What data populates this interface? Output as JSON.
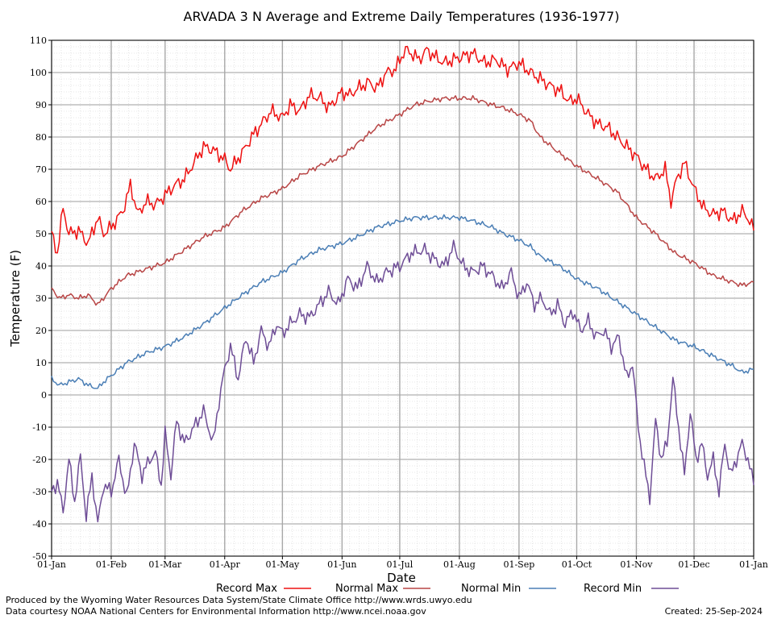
{
  "chart_data": {
    "type": "line",
    "title": "ARVADA 3 N Average and Extreme Daily Temperatures (1936-1977)",
    "xlabel": "Date",
    "ylabel": "Temperature (F)",
    "ylim": [
      -50,
      110
    ],
    "yticks": [
      -50,
      -40,
      -30,
      -20,
      -10,
      0,
      10,
      20,
      30,
      40,
      50,
      60,
      70,
      80,
      90,
      100,
      110
    ],
    "xticks": [
      "01-Jan",
      "01-Feb",
      "01-Mar",
      "01-Apr",
      "01-May",
      "01-Jun",
      "01-Jul",
      "01-Aug",
      "01-Sep",
      "01-Oct",
      "01-Nov",
      "01-Dec",
      "01-Jan"
    ],
    "xtick_days": [
      1,
      32,
      60,
      91,
      121,
      152,
      182,
      213,
      244,
      274,
      305,
      335,
      366
    ],
    "grid": true,
    "legend_position": "bottom",
    "series": [
      {
        "name": "Record Max",
        "color": "#ee1111",
        "x": [
          1,
          4,
          7,
          10,
          15,
          20,
          25,
          28,
          32,
          38,
          42,
          46,
          50,
          55,
          60,
          65,
          70,
          75,
          80,
          85,
          91,
          94,
          100,
          105,
          110,
          115,
          121,
          125,
          130,
          135,
          141,
          145,
          152,
          156,
          160,
          166,
          170,
          175,
          180,
          182,
          185,
          188,
          192,
          196,
          200,
          205,
          210,
          215,
          220,
          226,
          232,
          238,
          244,
          250,
          255,
          260,
          266,
          270,
          274,
          280,
          285,
          290,
          295,
          300,
          305,
          310,
          315,
          320,
          323,
          326,
          330,
          335,
          340,
          345,
          350,
          355,
          360,
          363,
          366
        ],
        "y": [
          50,
          44,
          58,
          50,
          51,
          47,
          55,
          50,
          52,
          57,
          65,
          56,
          60,
          59,
          62,
          65,
          67,
          72,
          77,
          76,
          73,
          70,
          75,
          80,
          84,
          88,
          86,
          90,
          88,
          93,
          92,
          89,
          94,
          93,
          95,
          97,
          95,
          100,
          101,
          104,
          107,
          106,
          104,
          107,
          105,
          103,
          104,
          105,
          106,
          103,
          104,
          101,
          103,
          100,
          98,
          96,
          94,
          91,
          92,
          87,
          84,
          83,
          80,
          77,
          74,
          70,
          67,
          70,
          60,
          67,
          72,
          64,
          58,
          56,
          57,
          54,
          57,
          55,
          51
        ]
      },
      {
        "name": "Normal Max",
        "color": "#b84545",
        "x": [
          1,
          5,
          10,
          15,
          20,
          25,
          28,
          32,
          40,
          50,
          55,
          60,
          70,
          80,
          91,
          100,
          110,
          121,
          130,
          140,
          152,
          160,
          170,
          182,
          190,
          196,
          205,
          213,
          220,
          230,
          236,
          244,
          250,
          255,
          265,
          274,
          285,
          295,
          305,
          315,
          325,
          335,
          345,
          355,
          360,
          366
        ],
        "y": [
          33,
          30,
          31,
          30,
          31,
          28,
          30,
          33,
          37,
          39,
          40,
          41,
          45,
          49,
          52,
          57,
          61,
          64,
          68,
          71,
          74,
          78,
          83,
          87,
          90,
          91,
          92,
          92,
          92,
          90,
          89,
          87,
          85,
          80,
          75,
          71,
          67,
          63,
          55,
          50,
          44,
          41,
          37,
          35,
          34,
          35
        ]
      },
      {
        "name": "Normal Min",
        "color": "#4a7eb5",
        "x": [
          1,
          5,
          10,
          15,
          20,
          25,
          28,
          32,
          40,
          50,
          55,
          60,
          70,
          80,
          91,
          100,
          110,
          121,
          130,
          140,
          152,
          160,
          170,
          182,
          190,
          196,
          205,
          213,
          220,
          230,
          236,
          244,
          250,
          255,
          265,
          274,
          285,
          295,
          305,
          315,
          325,
          335,
          345,
          355,
          360,
          366
        ],
        "y": [
          5,
          3,
          4,
          5,
          3,
          2,
          4,
          6,
          10,
          13,
          14,
          15,
          18,
          22,
          27,
          31,
          35,
          38,
          42,
          45,
          47,
          49,
          52,
          54,
          55,
          55,
          55,
          55,
          54,
          52,
          50,
          48,
          46,
          43,
          40,
          36,
          33,
          29,
          25,
          21,
          17,
          15,
          12,
          9,
          7,
          8
        ]
      },
      {
        "name": "Record Min",
        "color": "#6e4d96",
        "x": [
          1,
          4,
          7,
          10,
          13,
          16,
          19,
          22,
          25,
          28,
          32,
          36,
          40,
          44,
          48,
          52,
          55,
          58,
          60,
          63,
          66,
          70,
          75,
          80,
          85,
          88,
          91,
          94,
          98,
          102,
          106,
          110,
          114,
          118,
          121,
          125,
          130,
          135,
          140,
          145,
          150,
          155,
          160,
          165,
          170,
          175,
          182,
          188,
          195,
          200,
          205,
          210,
          215,
          220,
          225,
          230,
          235,
          240,
          244,
          248,
          252,
          256,
          260,
          264,
          268,
          272,
          276,
          280,
          284,
          288,
          292,
          296,
          300,
          303,
          306,
          309,
          312,
          315,
          318,
          321,
          324,
          327,
          330,
          333,
          336,
          339,
          342,
          345,
          348,
          351,
          354,
          357,
          360,
          363,
          366
        ],
        "y": [
          -30,
          -27,
          -36,
          -20,
          -33,
          -19,
          -38,
          -25,
          -40,
          -28,
          -30,
          -20,
          -32,
          -15,
          -25,
          -20,
          -18,
          -28,
          -12,
          -25,
          -8,
          -15,
          -10,
          -5,
          -15,
          -2,
          8,
          15,
          5,
          18,
          10,
          20,
          15,
          22,
          19,
          22,
          25,
          24,
          28,
          32,
          28,
          36,
          33,
          40,
          35,
          38,
          40,
          44,
          45,
          42,
          40,
          46,
          40,
          38,
          40,
          37,
          33,
          38,
          30,
          35,
          28,
          30,
          25,
          28,
          22,
          26,
          20,
          23,
          18,
          20,
          15,
          18,
          5,
          10,
          -10,
          -22,
          -32,
          -8,
          -20,
          -15,
          5,
          -10,
          -25,
          -5,
          -20,
          -15,
          -25,
          -20,
          -30,
          -15,
          -25,
          -20,
          -15,
          -20,
          -28
        ]
      }
    ]
  },
  "legend": [
    {
      "label": "Record Max",
      "color": "#ee1111"
    },
    {
      "label": "Normal Max",
      "color": "#b84545"
    },
    {
      "label": "Normal Min",
      "color": "#4a7eb5"
    },
    {
      "label": "Record Min",
      "color": "#6e4d96"
    }
  ],
  "footer": {
    "credit_line1": "Produced by the Wyoming Water Resources Data System/State Climate Office http://www.wrds.uwyo.edu",
    "credit_line2": "Data courtesy NOAA National Centers for Environmental Information http://www.ncei.noaa.gov",
    "created": "Created: 25-Sep-2024"
  }
}
